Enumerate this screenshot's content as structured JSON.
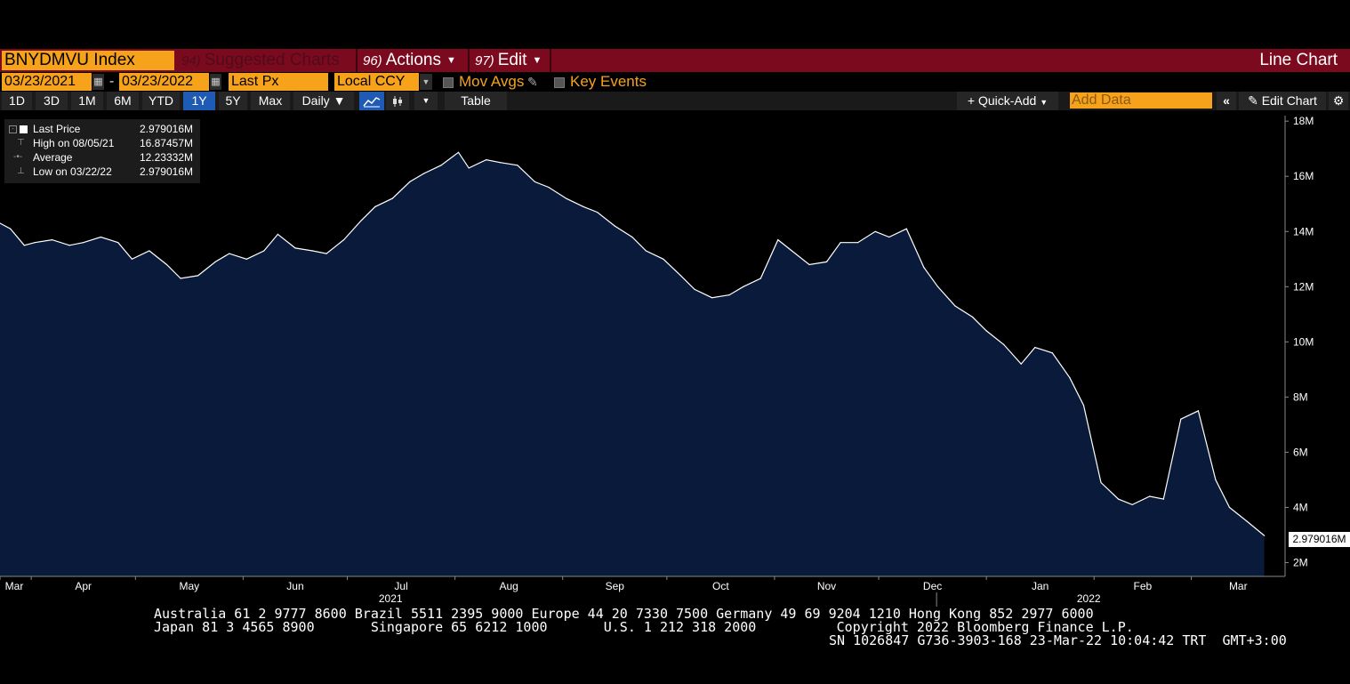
{
  "header": {
    "ticker": "BNYDMVU Index",
    "suggested": {
      "num": "94)",
      "label": "Suggested Charts"
    },
    "actions": {
      "num": "96)",
      "label": "Actions"
    },
    "edit": {
      "num": "97)",
      "label": "Edit"
    },
    "view_label": "Line Chart"
  },
  "params": {
    "start_date": "03/23/2021",
    "end_date": "03/23/2022",
    "separator": "-",
    "field": "Last Px",
    "currency": "Local CCY",
    "mov_avgs": "Mov Avgs",
    "key_events": "Key Events"
  },
  "toolbar": {
    "ranges": [
      "1D",
      "3D",
      "1M",
      "6M",
      "YTD",
      "1Y",
      "5Y",
      "Max"
    ],
    "active_range": "1Y",
    "frequency": "Daily ▼",
    "table": "Table",
    "quick_add": "+ Quick-Add",
    "add_data_placeholder": "Add Data",
    "edit_chart": "Edit Chart"
  },
  "legend": {
    "last_label": "Last Price",
    "last_value": "2.979016M",
    "high_label": "High on 08/05/21",
    "high_value": "16.87457M",
    "avg_label": "Average",
    "avg_value": "12.23332M",
    "low_label": "Low on 03/22/22",
    "low_value": "2.979016M"
  },
  "last_value_tag": "2.979016M",
  "footer": {
    "line1": "Australia 61 2 9777 8600 Brazil 5511 2395 9000 Europe 44 20 7330 7500 Germany 49 69 9204 1210 Hong Kong 852 2977 6000",
    "line2": "Japan 81 3 4565 8900       Singapore 65 6212 1000       U.S. 1 212 318 2000          Copyright 2022 Bloomberg Finance L.P.",
    "line3": "SN 1026847 G736-3903-168 23-Mar-22 10:04:42 TRT  GMT+3:00"
  },
  "colors": {
    "accent": "#f7a21b",
    "title_bar": "#7b0a1f",
    "area_fill": "#0a1a3a",
    "line": "#ffffff"
  },
  "chart_data": {
    "type": "area",
    "title": "BNYDMVU Index",
    "ylabel": "",
    "xlabel": "",
    "ylim": [
      1500000,
      18200000
    ],
    "y_ticks": [
      2000000,
      4000000,
      6000000,
      8000000,
      10000000,
      12000000,
      14000000,
      16000000,
      18000000
    ],
    "y_tick_labels": [
      "2M",
      "4M",
      "6M",
      "8M",
      "10M",
      "12M",
      "14M",
      "16M",
      "18M"
    ],
    "x_ticks": [
      {
        "date": "2021-03-23",
        "label": "Mar"
      },
      {
        "date": "2021-04-01",
        "label": "Apr"
      },
      {
        "date": "2021-05-01",
        "label": "May"
      },
      {
        "date": "2021-06-01",
        "label": "Jun"
      },
      {
        "date": "2021-07-01",
        "label": "Jul"
      },
      {
        "date": "2021-08-01",
        "label": "Aug"
      },
      {
        "date": "2021-09-01",
        "label": "Sep"
      },
      {
        "date": "2021-10-01",
        "label": "Oct"
      },
      {
        "date": "2021-11-01",
        "label": "Nov"
      },
      {
        "date": "2021-12-01",
        "label": "Dec"
      },
      {
        "date": "2022-01-01",
        "label": "Jan"
      },
      {
        "date": "2022-02-01",
        "label": "Feb"
      },
      {
        "date": "2022-03-01",
        "label": "Mar"
      }
    ],
    "year_labels": [
      {
        "date": "2021-07-15",
        "label": "2021"
      },
      {
        "date": "2022-02-01",
        "label": "2022"
      }
    ],
    "grid": false,
    "legend_position": "top-left",
    "series": [
      {
        "name": "Last Price",
        "x": [
          "2021-03-23",
          "2021-03-26",
          "2021-03-30",
          "2021-04-02",
          "2021-04-07",
          "2021-04-12",
          "2021-04-16",
          "2021-04-21",
          "2021-04-26",
          "2021-04-30",
          "2021-05-05",
          "2021-05-10",
          "2021-05-14",
          "2021-05-19",
          "2021-05-24",
          "2021-05-28",
          "2021-06-02",
          "2021-06-07",
          "2021-06-11",
          "2021-06-16",
          "2021-06-21",
          "2021-06-25",
          "2021-06-30",
          "2021-07-05",
          "2021-07-09",
          "2021-07-14",
          "2021-07-19",
          "2021-07-23",
          "2021-07-28",
          "2021-08-02",
          "2021-08-05",
          "2021-08-10",
          "2021-08-14",
          "2021-08-19",
          "2021-08-24",
          "2021-08-28",
          "2021-09-02",
          "2021-09-07",
          "2021-09-11",
          "2021-09-16",
          "2021-09-21",
          "2021-09-25",
          "2021-09-30",
          "2021-10-05",
          "2021-10-09",
          "2021-10-14",
          "2021-10-19",
          "2021-10-23",
          "2021-10-28",
          "2021-11-02",
          "2021-11-06",
          "2021-11-11",
          "2021-11-16",
          "2021-11-20",
          "2021-11-25",
          "2021-11-30",
          "2021-12-04",
          "2021-12-09",
          "2021-12-14",
          "2021-12-18",
          "2021-12-23",
          "2021-12-28",
          "2022-01-01",
          "2022-01-06",
          "2022-01-11",
          "2022-01-15",
          "2022-01-20",
          "2022-01-25",
          "2022-01-29",
          "2022-02-03",
          "2022-02-08",
          "2022-02-12",
          "2022-02-17",
          "2022-02-21",
          "2022-02-26",
          "2022-03-03",
          "2022-03-08",
          "2022-03-12",
          "2022-03-17",
          "2022-03-22"
        ],
        "values": [
          14300000,
          14100000,
          13500000,
          13600000,
          13700000,
          13500000,
          13600000,
          13800000,
          13600000,
          13000000,
          13300000,
          12800000,
          12300000,
          12400000,
          12900000,
          13200000,
          13000000,
          13300000,
          13900000,
          13400000,
          13300000,
          13200000,
          13700000,
          14400000,
          14900000,
          15200000,
          15800000,
          16100000,
          16400000,
          16870000,
          16300000,
          16600000,
          16500000,
          16400000,
          15800000,
          15600000,
          15200000,
          14900000,
          14700000,
          14200000,
          13800000,
          13300000,
          13000000,
          12400000,
          11900000,
          11600000,
          11700000,
          12000000,
          12300000,
          13700000,
          13300000,
          12800000,
          12900000,
          13600000,
          13600000,
          14000000,
          13800000,
          14100000,
          12700000,
          12000000,
          11300000,
          10900000,
          10400000,
          9900000,
          9200000,
          9800000,
          9600000,
          8700000,
          7700000,
          4900000,
          4300000,
          4100000,
          4400000,
          4300000,
          7200000,
          7500000,
          5000000,
          4000000,
          3500000,
          2979016
        ]
      }
    ]
  }
}
